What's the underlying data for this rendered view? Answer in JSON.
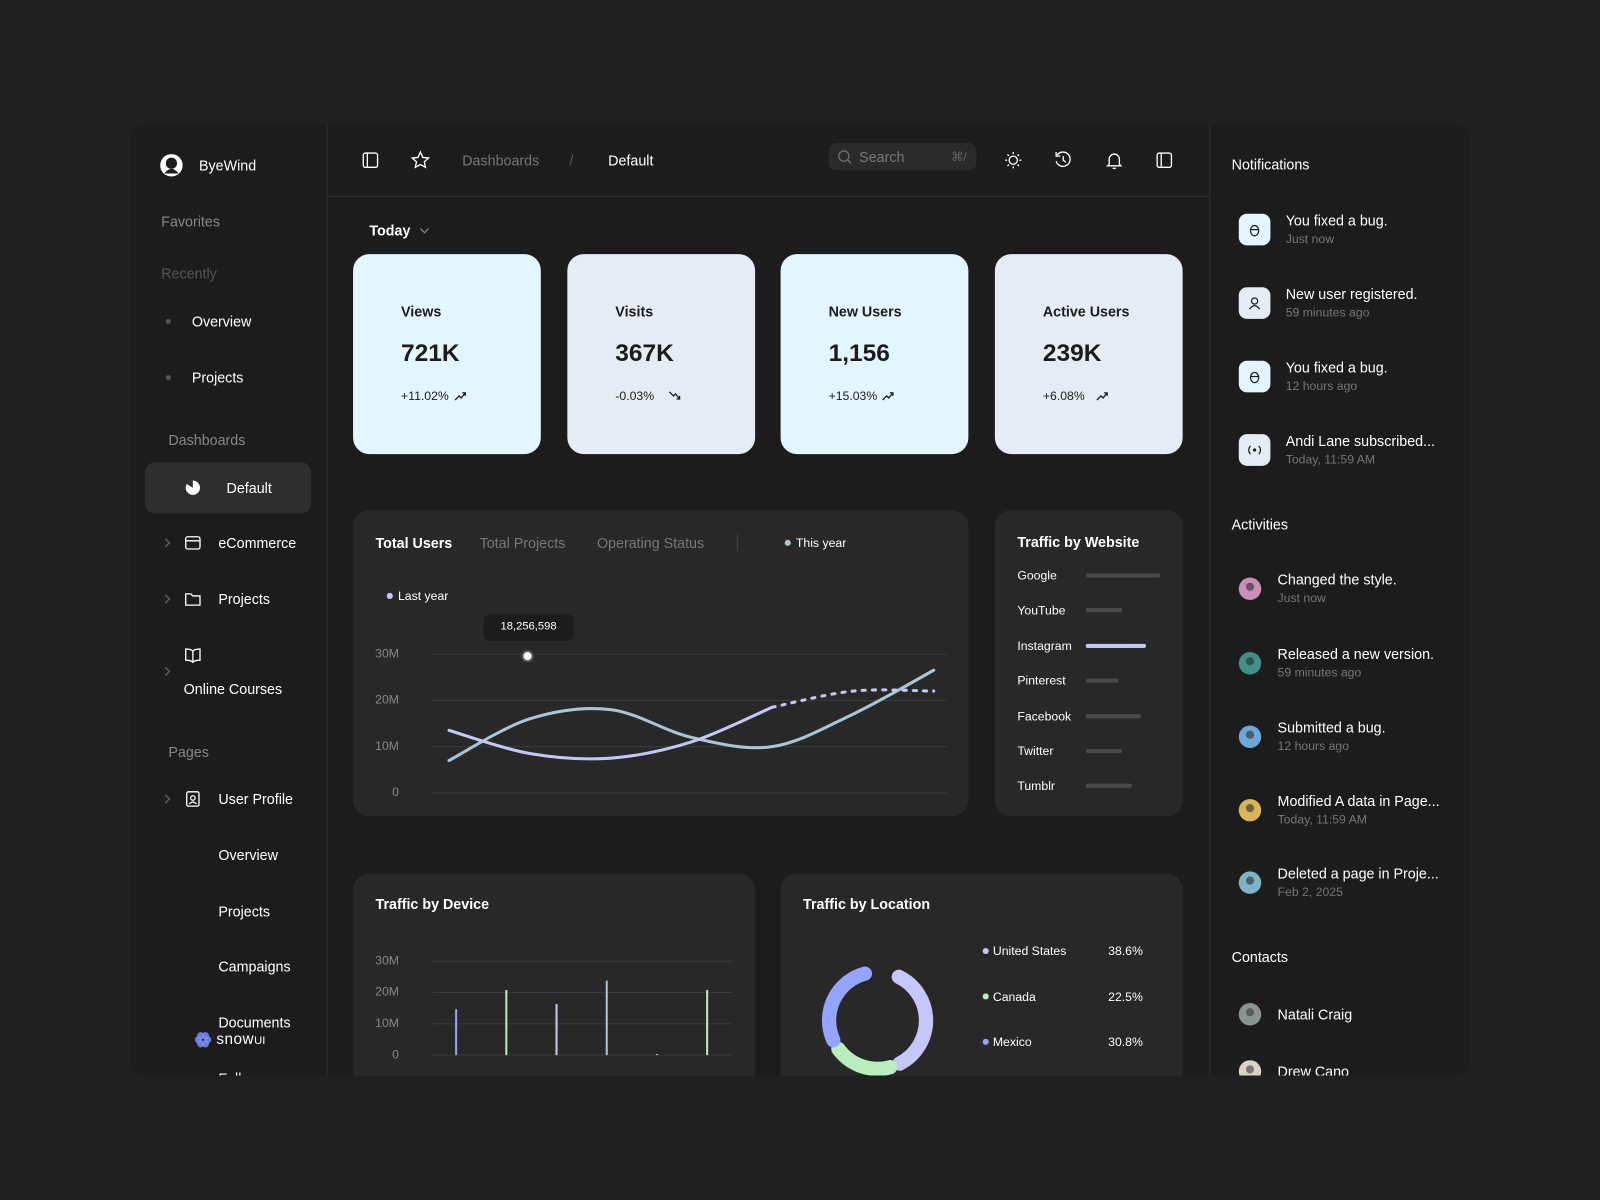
{
  "sidebar": {
    "brand": "ByeWind",
    "favorites": "Favorites",
    "recently": "Recently",
    "recent": [
      "Overview",
      "Projects"
    ],
    "dashboards_heading": "Dashboards",
    "dashboards": [
      "Default",
      "eCommerce",
      "Projects",
      "Online Courses"
    ],
    "pages_heading": "Pages",
    "pages": [
      "User Profile",
      "Overview",
      "Projects",
      "Campaigns",
      "Documents",
      "Followers"
    ],
    "logo": {
      "name": "snow",
      "suffix": "UI"
    }
  },
  "header": {
    "breadcrumb": [
      "Dashboards",
      "Default"
    ],
    "separator": "/",
    "search": "Search",
    "shortcut": "⌘/"
  },
  "filter": "Today",
  "stats": [
    {
      "label": "Views",
      "value": "721K",
      "change": "+11.02%",
      "trend": "up"
    },
    {
      "label": "Visits",
      "value": "367K",
      "change": "-0.03%",
      "trend": "down"
    },
    {
      "label": "New Users",
      "value": "1,156",
      "change": "+15.03%",
      "trend": "up"
    },
    {
      "label": "Active Users",
      "value": "239K",
      "change": "+6.08%",
      "trend": "up"
    }
  ],
  "total_users": {
    "type": "line",
    "tabs": [
      "Total Users",
      "Total Projects",
      "Operating Status"
    ],
    "categories": [
      null,
      null,
      null,
      null,
      null,
      null,
      null
    ],
    "series": [
      {
        "name": "This year",
        "color": "#a8c5da",
        "values": [
          7000000,
          16000000,
          18000000,
          12000000,
          10000000,
          17000000,
          26500000
        ]
      },
      {
        "name": "Last year",
        "color": "#c6c7f8",
        "values": [
          13500000,
          8500000,
          7500000,
          11000000,
          18500000,
          22000000,
          22000000
        ],
        "dashed_from": 4
      }
    ],
    "ylim": [
      0,
      30000000
    ],
    "yticks": [
      0,
      {
        "value": 10000000,
        "label": "10M"
      },
      {
        "value": 20000000,
        "label": "20M"
      },
      {
        "value": 30000000,
        "label": "30M"
      }
    ],
    "grid": true,
    "annotation": "18,256,598"
  },
  "traffic_by_website": {
    "type": "bar",
    "orientation": "horizontal",
    "title": "Traffic by Website",
    "categories": [
      "Google",
      "YouTube",
      "Instagram",
      "Pinterest",
      "Facebook",
      "Twitter",
      "Tumblr"
    ],
    "values": [
      100,
      49,
      81,
      44,
      74,
      49,
      62
    ],
    "colors": [
      "#4a4a4a",
      "#4a4a4a",
      "#c6c7f8",
      "#4a4a4a",
      "#4a4a4a",
      "#4a4a4a",
      "#4a4a4a"
    ],
    "xlim": [
      0,
      100
    ]
  },
  "traffic_by_device": {
    "type": "bar",
    "orientation": "vertical",
    "title": "Traffic by Device",
    "categories": [
      null,
      null,
      null,
      null,
      null,
      null
    ],
    "values": [
      14700000,
      20800000,
      16300000,
      23800000,
      300000,
      20800000
    ],
    "colors": [
      "#95a4fc",
      "#baedbd",
      "#c6c7f8",
      "#a8c5da",
      "#c6c7f8",
      "#baedbd"
    ],
    "ylim": [
      0,
      30000000
    ],
    "yticks": [
      0,
      {
        "value": 10000000,
        "label": "10M"
      },
      {
        "value": 20000000,
        "label": "20M"
      },
      {
        "value": 30000000,
        "label": "30M"
      }
    ],
    "grid": true
  },
  "traffic_by_location": {
    "type": "pie",
    "title": "Traffic by Location",
    "categories": [
      "United States",
      "Canada",
      "Mexico"
    ],
    "values": [
      38.6,
      22.5,
      30.8
    ],
    "value_labels": [
      "38.6%",
      "22.5%",
      "30.8%"
    ],
    "colors": [
      "#c6c7f8",
      "#baedbd",
      "#95a4fc"
    ]
  },
  "notifications": {
    "title": "Notifications",
    "items": [
      {
        "text": "You fixed a bug.",
        "time": "Just now",
        "icon": "bug"
      },
      {
        "text": "New user registered.",
        "time": "59 minutes ago",
        "icon": "user"
      },
      {
        "text": "You fixed a bug.",
        "time": "12 hours ago",
        "icon": "bug"
      },
      {
        "text": "Andi Lane subscribed...",
        "time": "Today, 11:59 AM",
        "icon": "broadcast"
      }
    ]
  },
  "activities": {
    "title": "Activities",
    "items": [
      {
        "text": "Changed the style.",
        "time": "Just now"
      },
      {
        "text": "Released a new version.",
        "time": "59 minutes ago"
      },
      {
        "text": "Submitted a bug.",
        "time": "12 hours ago"
      },
      {
        "text": "Modified A data in Page...",
        "time": "Today, 11:59 AM"
      },
      {
        "text": "Deleted a page in Proje...",
        "time": "Feb 2, 2025"
      }
    ]
  },
  "contacts": {
    "title": "Contacts",
    "items": [
      "Natali Craig",
      "Drew Cano"
    ]
  }
}
